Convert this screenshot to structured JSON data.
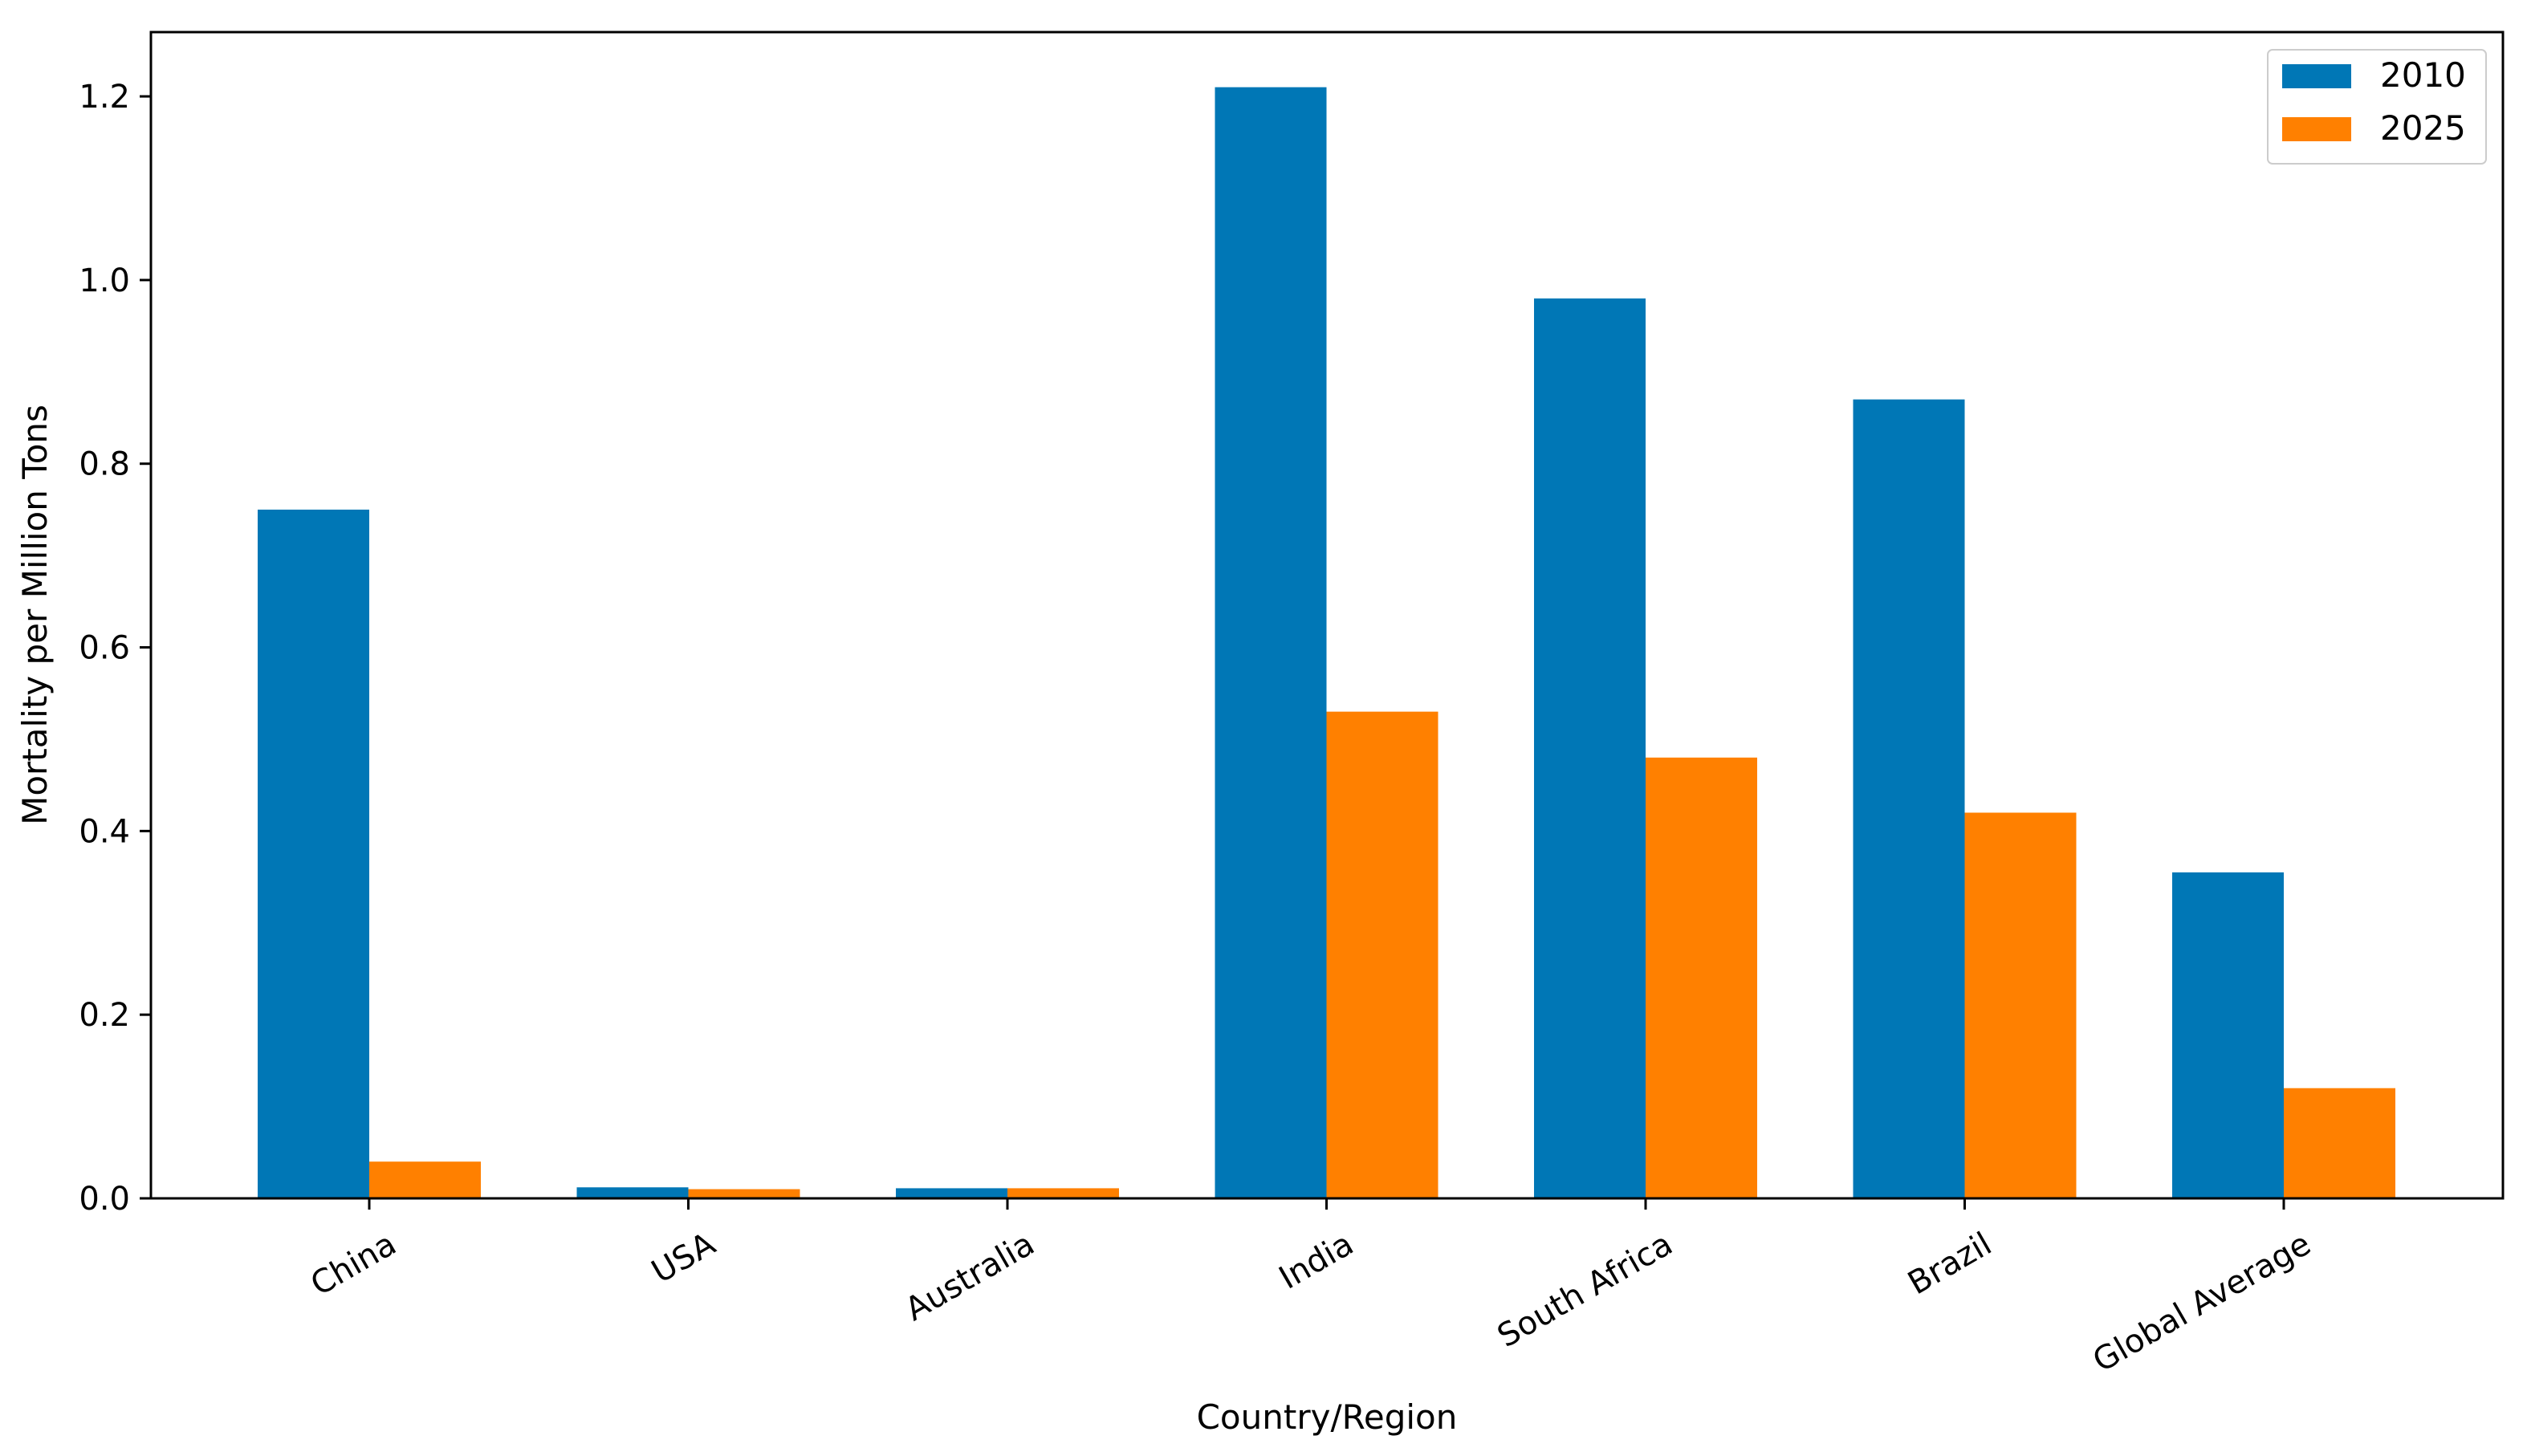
{
  "chart_data": {
    "type": "bar",
    "title": "",
    "xlabel": "Country/Region",
    "ylabel": "Mortality per Million Tons",
    "categories": [
      "China",
      "USA",
      "Australia",
      "India",
      "South Africa",
      "Brazil",
      "Global Average"
    ],
    "series": [
      {
        "name": "2010",
        "color": "#0077b6",
        "values": [
          0.75,
          0.012,
          0.011,
          1.21,
          0.98,
          0.87,
          0.355
        ]
      },
      {
        "name": "2025",
        "color": "#ff8000",
        "values": [
          0.04,
          0.01,
          0.011,
          0.53,
          0.48,
          0.42,
          0.12
        ]
      }
    ],
    "ylim": [
      0,
      1.27
    ],
    "yticks": [
      {
        "value": 0.0,
        "label": "0.0"
      },
      {
        "value": 0.2,
        "label": "0.2"
      },
      {
        "value": 0.4,
        "label": "0.4"
      },
      {
        "value": 0.6,
        "label": "0.6"
      },
      {
        "value": 0.8,
        "label": "0.8"
      },
      {
        "value": 1.0,
        "label": "1.0"
      },
      {
        "value": 1.2,
        "label": "1.2"
      }
    ],
    "grid": false,
    "legend": "top-right",
    "xtick_rotation": -30
  }
}
